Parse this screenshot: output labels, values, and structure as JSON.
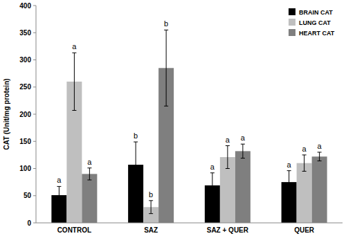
{
  "chart_data": {
    "type": "bar",
    "y_label": "CAT (Unit/mg protein)",
    "categories": [
      "CONTROL",
      "SAZ",
      "SAZ + QUER",
      "QUER"
    ],
    "series": [
      {
        "name": "BRAIN CAT",
        "color": "#000000",
        "values": [
          51,
          107,
          69,
          75
        ],
        "errors": [
          16,
          42,
          23,
          21
        ],
        "annotations": [
          "a",
          "b",
          "a",
          "a"
        ]
      },
      {
        "name": "LUNG CAT",
        "color": "#bfbfbf",
        "values": [
          260,
          29,
          121,
          110
        ],
        "errors": [
          53,
          12,
          21,
          15
        ],
        "annotations": [
          "a",
          "b",
          "a",
          "a"
        ]
      },
      {
        "name": "HEART CAT",
        "color": "#7f7f7f",
        "values": [
          90,
          285,
          132,
          122
        ],
        "errors": [
          11,
          70,
          13,
          8
        ],
        "annotations": [
          "a",
          "b",
          "a",
          "a"
        ]
      }
    ],
    "ylim": [
      0,
      400
    ],
    "yticks": [
      0,
      50,
      100,
      150,
      200,
      250,
      300,
      350,
      400
    ],
    "grid": false,
    "legend": "upper right"
  }
}
